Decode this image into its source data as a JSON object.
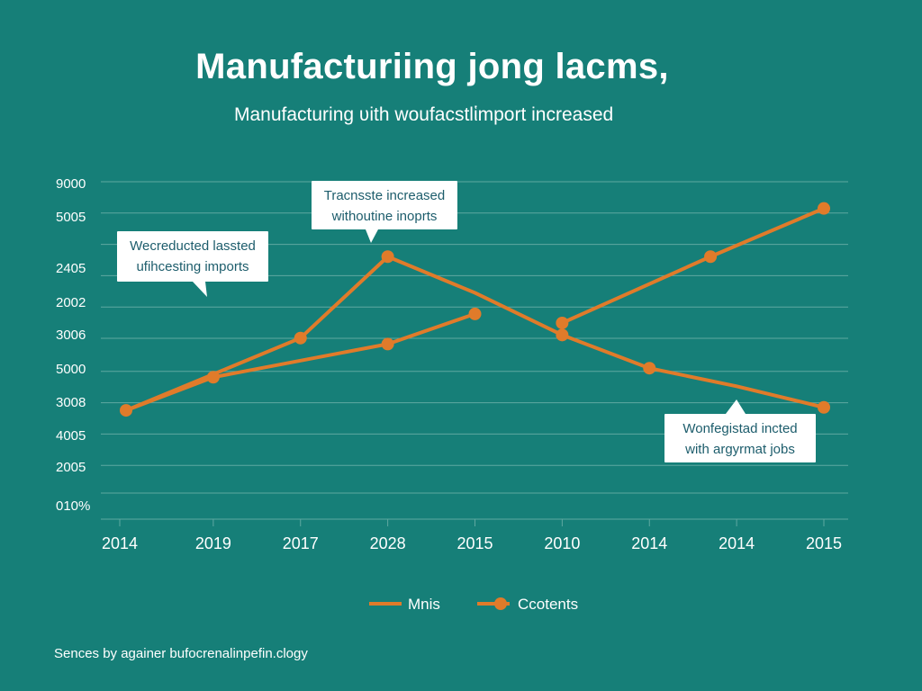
{
  "title": "Manufacturiing jong lacms,",
  "subtitle": "Manufacturing ʋith woufacstlἱmport increased",
  "footer": "Sences by againer bufocrenalinpefin.clogy",
  "colors": {
    "background": "#167f78",
    "series": "#e07b2a",
    "grid": "#5fa8a1",
    "callout_text": "#1d5d6c"
  },
  "chart_data": {
    "type": "line",
    "title": "Manufacturiing jong lacms,",
    "subtitle": "Manufacturing ʋith woufacstlἱmport increased",
    "xlabel": "",
    "ylabel": "",
    "categories": [
      "2014",
      "2019",
      "2017",
      "2028",
      "2015",
      "2010",
      "2014",
      "2014",
      "2015"
    ],
    "ytick_labels": [
      "9000",
      "5005",
      "2405",
      "2002",
      "3006",
      "5000",
      "3008",
      "4005",
      "2005",
      "010%"
    ],
    "grid": true,
    "legend_position": "bottom-center",
    "series": [
      {
        "name": "Mnis",
        "marker": false,
        "points": [
          [
            0,
            3.4
          ],
          [
            2,
            5.8
          ],
          [
            3,
            8.5
          ],
          [
            4,
            7.3
          ],
          [
            5,
            5.9
          ],
          [
            6,
            4.8
          ],
          [
            7,
            4.2
          ],
          [
            8,
            3.5
          ]
        ]
      },
      {
        "name": "Ccotents",
        "marker": true,
        "points": [
          [
            0,
            3.4
          ],
          [
            1,
            4.5
          ],
          [
            3,
            5.6
          ],
          [
            4,
            6.6
          ]
        ]
      },
      {
        "name": "Ccotents",
        "marker": true,
        "points": [
          [
            5,
            6.3
          ],
          [
            6.7,
            8.5
          ],
          [
            8,
            10.1
          ]
        ]
      }
    ],
    "marker_points": [
      [
        0,
        3.4
      ],
      [
        1,
        4.5
      ],
      [
        2,
        5.8
      ],
      [
        3,
        8.5
      ],
      [
        3,
        5.6
      ],
      [
        4,
        6.6
      ],
      [
        5,
        6.3
      ],
      [
        5,
        5.9
      ],
      [
        6,
        4.8
      ],
      [
        6.7,
        8.5
      ],
      [
        8,
        10.1
      ],
      [
        8,
        3.5
      ]
    ],
    "annotations": [
      {
        "lines": [
          "Tracnsste increased",
          "withoutine inoprts"
        ]
      },
      {
        "lines": [
          "Wecreducted lassted",
          "ufihcesting imports"
        ]
      },
      {
        "lines": [
          "Wonfegistad incted",
          "with argyrmat jobs"
        ]
      }
    ]
  },
  "legend": [
    {
      "label": "Mnis",
      "style": "line"
    },
    {
      "label": "Ccotents",
      "style": "line-marker"
    }
  ]
}
